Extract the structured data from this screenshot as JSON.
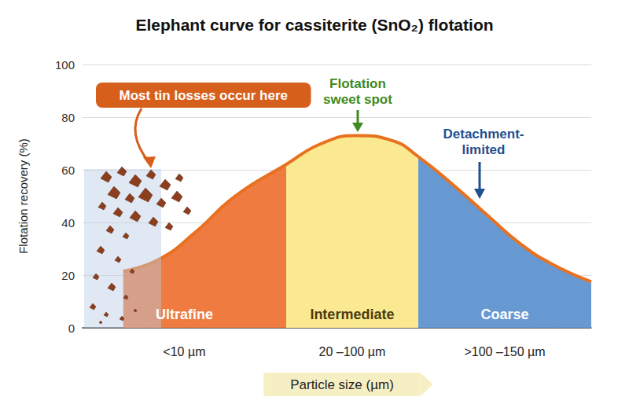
{
  "chart_data": {
    "type": "line",
    "title": "Elephant curve for cassiterite (SnO₂) flotation",
    "x_label": "Particle size (µm)",
    "y_label": "Flotation recovery (%)",
    "x": [
      8,
      15,
      22,
      30,
      40,
      47,
      54,
      61,
      66,
      73,
      80,
      86,
      92,
      100
    ],
    "values": [
      21.5,
      26,
      36,
      50,
      62,
      70,
      73,
      71,
      65,
      54,
      42,
      32,
      24.5,
      17.5
    ],
    "color": "#e8711f",
    "xlim": [
      0,
      100
    ],
    "ylim": [
      0,
      100
    ],
    "yticks": [
      0,
      20,
      40,
      60,
      80,
      100
    ],
    "grid": true,
    "tick_labels": "y",
    "regions": [
      {
        "name": "Ultrafine",
        "size_label": "<10 µm",
        "x": [
          0,
          40
        ],
        "color": "#ee7436"
      },
      {
        "name": "Intermediate",
        "size_label": "20 –100 µm",
        "x": [
          40,
          66
        ],
        "color": "#fbe88c"
      },
      {
        "name": "Coarse",
        "size_label": ">100 –150 µm",
        "x": [
          66,
          100
        ],
        "color": "#5f93d0"
      }
    ],
    "annotations": [
      {
        "text": "Most tin losses occur here",
        "color": "#d65f1c"
      },
      {
        "text": "Flotation\nsweet spot",
        "color": "#3f8a1e"
      },
      {
        "text": "Detachment-\nlimited",
        "color": "#1f4f8f"
      }
    ]
  }
}
